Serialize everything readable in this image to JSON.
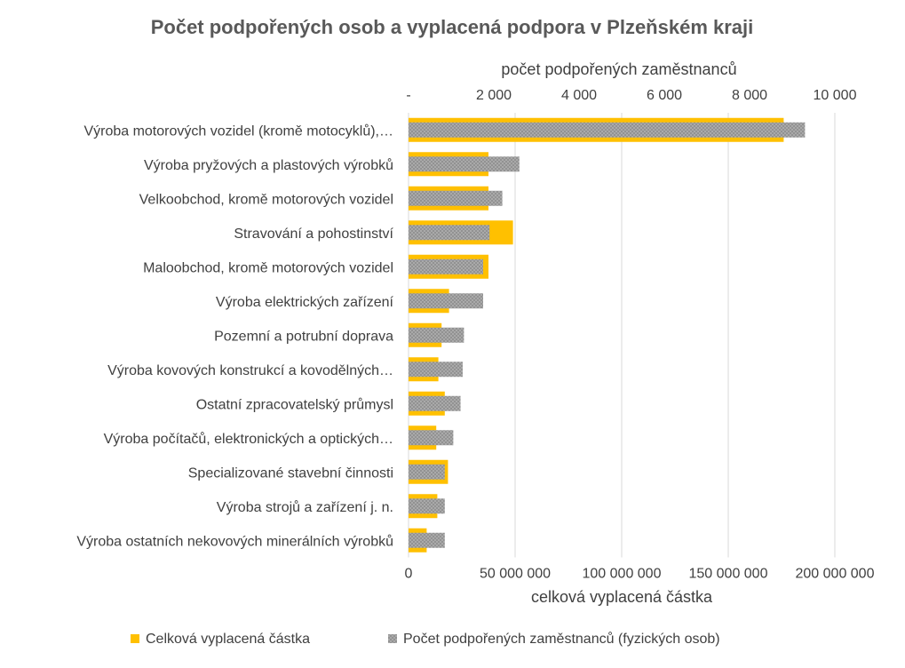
{
  "chart_data": {
    "type": "bar",
    "orientation": "horizontal",
    "title": "Počet podpořených osob a vyplacená podpora v Plzeňském kraji",
    "categories": [
      "Výroba motorových vozidel (kromě motocyklů),…",
      "Výroba pryžových a plastových výrobků",
      "Velkoobchod, kromě motorových vozidel",
      "Stravování a pohostinství",
      "Maloobchod, kromě motorových vozidel",
      "Výroba elektrických zařízení",
      "Pozemní a potrubní doprava",
      "Výroba kovových konstrukcí a kovodělných…",
      "Ostatní zpracovatelský průmysl",
      "Výroba počítačů, elektronických a optických…",
      "Specializované stavební činnosti",
      "Výroba strojů a zařízení j. n.",
      "Výroba ostatních nekovových minerálních výrobků"
    ],
    "series": [
      {
        "name": "Celková vyplacená částka",
        "axis": "bottom",
        "color": "#FFC000",
        "values": [
          176000000,
          37500000,
          37500000,
          49000000,
          37500000,
          19000000,
          15500000,
          14000000,
          17000000,
          13000000,
          18500000,
          13500000,
          8500000
        ]
      },
      {
        "name": "Počet podpořených zaměstnanců (fyzických osob)",
        "axis": "top",
        "color": "#A6A6A6",
        "pattern": "cross-hatch",
        "values": [
          9300,
          2600,
          2200,
          1900,
          1750,
          1750,
          1300,
          1270,
          1220,
          1050,
          850,
          850,
          850
        ]
      }
    ],
    "bottom_axis": {
      "label": "celková vyplacená částka",
      "min": 0,
      "max": 200000000,
      "tick_values": [
        0,
        50000000,
        100000000,
        150000000,
        200000000
      ],
      "tick_labels": [
        "0",
        "50 000 000",
        "100 000 000",
        "150 000 000",
        "200 000 000"
      ]
    },
    "top_axis": {
      "label": "počet podpořených zaměstnanců",
      "min": 0,
      "max": 10000,
      "tick_values": [
        0,
        2000,
        4000,
        6000,
        8000,
        10000
      ],
      "tick_labels": [
        "-",
        "2 000",
        "4 000",
        "6 000",
        "8 000",
        "10 000"
      ]
    },
    "grid": true,
    "legend": "bottom"
  }
}
